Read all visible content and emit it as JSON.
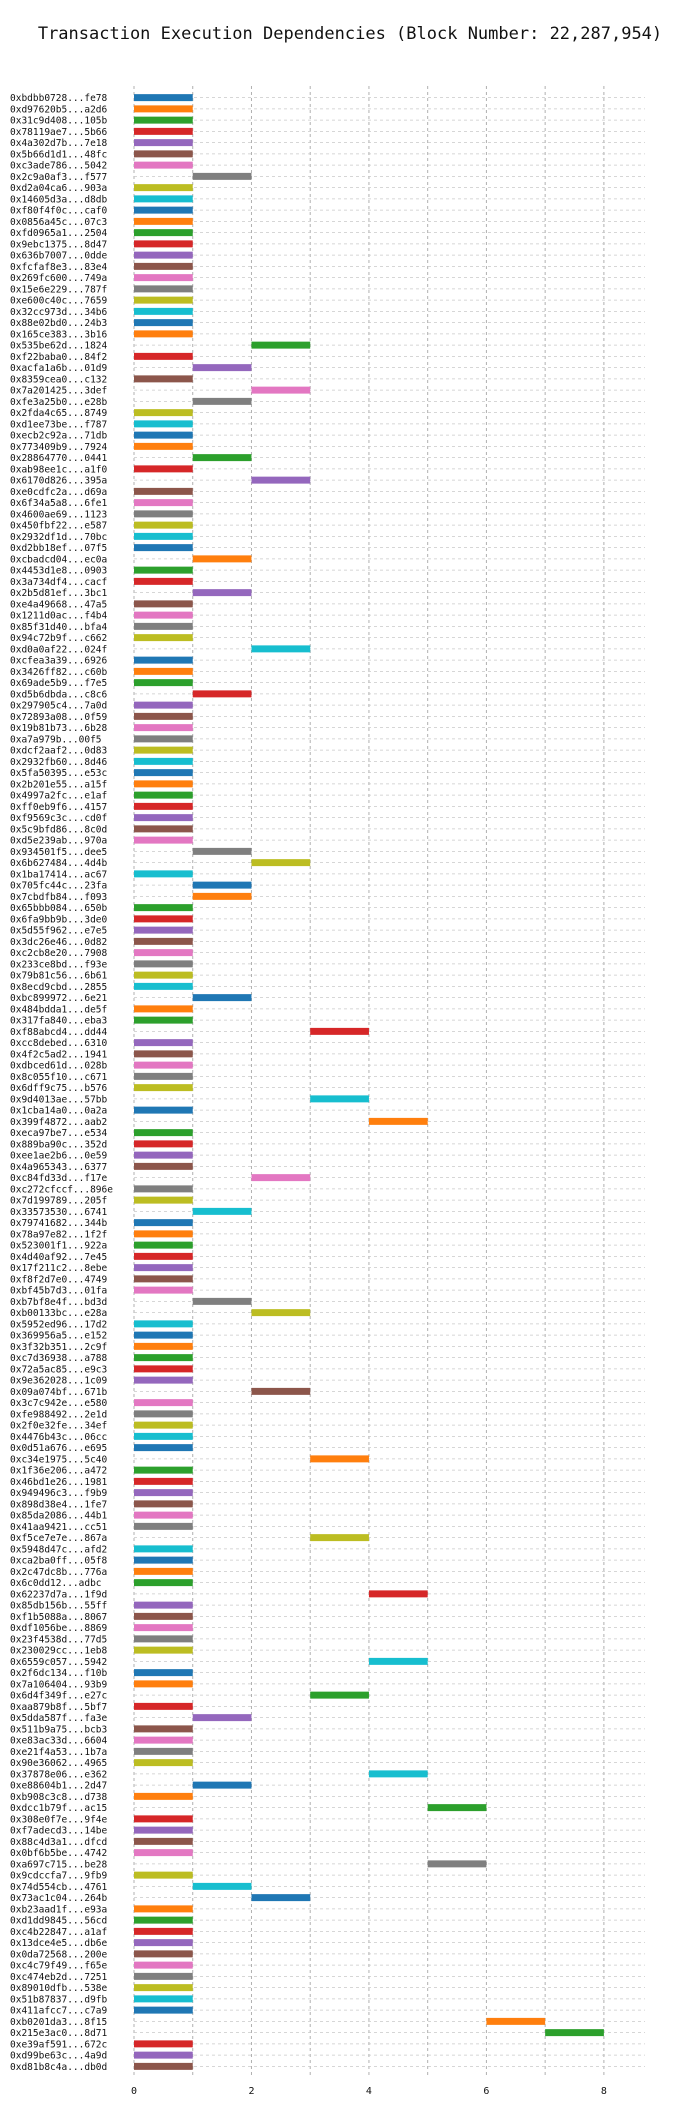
{
  "chart_data": {
    "type": "bar",
    "orientation": "horizontal",
    "title": "Transaction Execution Dependencies (Block Number: 22,287,954)",
    "xlabel": "",
    "ylabel": "",
    "xlim": [
      0,
      8.7
    ],
    "xticks": [
      0,
      2,
      4,
      6,
      8
    ],
    "grid": true,
    "legend": "none",
    "palette": [
      "#1f77b4",
      "#ff7f0e",
      "#2ca02c",
      "#d62728",
      "#9467bd",
      "#8c564b",
      "#e377c2",
      "#7f7f7f",
      "#bcbd22",
      "#17becf"
    ],
    "transactions": [
      {
        "label": "0xbdbb0728...fe78",
        "start": 0,
        "end": 1
      },
      {
        "label": "0xd97620b5...a2d6",
        "start": 0,
        "end": 1
      },
      {
        "label": "0x31c9d408...105b",
        "start": 0,
        "end": 1
      },
      {
        "label": "0x78119ae7...5b66",
        "start": 0,
        "end": 1
      },
      {
        "label": "0x4a302d7b...7e18",
        "start": 0,
        "end": 1
      },
      {
        "label": "0x5b66d1d1...48fc",
        "start": 0,
        "end": 1
      },
      {
        "label": "0xc3ade786...5042",
        "start": 0,
        "end": 1
      },
      {
        "label": "0x2c9a0af3...f577",
        "start": 1,
        "end": 2
      },
      {
        "label": "0xd2a04ca6...903a",
        "start": 0,
        "end": 1
      },
      {
        "label": "0x14605d3a...d8db",
        "start": 0,
        "end": 1
      },
      {
        "label": "0xf80f4f0c...caf0",
        "start": 0,
        "end": 1
      },
      {
        "label": "0x0856a45c...07c3",
        "start": 0,
        "end": 1
      },
      {
        "label": "0xfd0965a1...2504",
        "start": 0,
        "end": 1
      },
      {
        "label": "0x9ebc1375...8d47",
        "start": 0,
        "end": 1
      },
      {
        "label": "0x636b7007...0dde",
        "start": 0,
        "end": 1
      },
      {
        "label": "0xfcfaf8e3...83e4",
        "start": 0,
        "end": 1
      },
      {
        "label": "0x269fc600...749a",
        "start": 0,
        "end": 1
      },
      {
        "label": "0x15e6e229...787f",
        "start": 0,
        "end": 1
      },
      {
        "label": "0xe600c40c...7659",
        "start": 0,
        "end": 1
      },
      {
        "label": "0x32cc973d...34b6",
        "start": 0,
        "end": 1
      },
      {
        "label": "0x88e02bd0...24b3",
        "start": 0,
        "end": 1
      },
      {
        "label": "0x165ce383...3b16",
        "start": 0,
        "end": 1
      },
      {
        "label": "0x535be62d...1824",
        "start": 2,
        "end": 3
      },
      {
        "label": "0xf22baba0...84f2",
        "start": 0,
        "end": 1
      },
      {
        "label": "0xacfa1a6b...01d9",
        "start": 1,
        "end": 2
      },
      {
        "label": "0x8359cea0...c132",
        "start": 0,
        "end": 1
      },
      {
        "label": "0x7a201425...3def",
        "start": 2,
        "end": 3
      },
      {
        "label": "0xfe3a25b0...e28b",
        "start": 1,
        "end": 2
      },
      {
        "label": "0x2fda4c65...8749",
        "start": 0,
        "end": 1
      },
      {
        "label": "0xd1ee73be...f787",
        "start": 0,
        "end": 1
      },
      {
        "label": "0xecb2c92a...71db",
        "start": 0,
        "end": 1
      },
      {
        "label": "0x773409b9...7924",
        "start": 0,
        "end": 1
      },
      {
        "label": "0x28864770...0441",
        "start": 1,
        "end": 2
      },
      {
        "label": "0xab98ee1c...a1f0",
        "start": 0,
        "end": 1
      },
      {
        "label": "0x6170d826...395a",
        "start": 2,
        "end": 3
      },
      {
        "label": "0xe0cdfc2a...d69a",
        "start": 0,
        "end": 1
      },
      {
        "label": "0x6f34a5a8...6fe1",
        "start": 0,
        "end": 1
      },
      {
        "label": "0x4600ae69...1123",
        "start": 0,
        "end": 1
      },
      {
        "label": "0x450fbf22...e587",
        "start": 0,
        "end": 1
      },
      {
        "label": "0x2932df1d...70bc",
        "start": 0,
        "end": 1
      },
      {
        "label": "0xd2bb18ef...07f5",
        "start": 0,
        "end": 1
      },
      {
        "label": "0xcbadcd04...ec0a",
        "start": 1,
        "end": 2
      },
      {
        "label": "0x4453d1e8...0903",
        "start": 0,
        "end": 1
      },
      {
        "label": "0x3a734df4...cacf",
        "start": 0,
        "end": 1
      },
      {
        "label": "0x2b5d81ef...3bc1",
        "start": 1,
        "end": 2
      },
      {
        "label": "0xe4a49668...47a5",
        "start": 0,
        "end": 1
      },
      {
        "label": "0x1211d0ac...f4b4",
        "start": 0,
        "end": 1
      },
      {
        "label": "0x85f31d40...bfa4",
        "start": 0,
        "end": 1
      },
      {
        "label": "0x94c72b9f...c662",
        "start": 0,
        "end": 1
      },
      {
        "label": "0xd0a0af22...024f",
        "start": 2,
        "end": 3
      },
      {
        "label": "0xcfea3a39...6926",
        "start": 0,
        "end": 1
      },
      {
        "label": "0x3426ff82...c60b",
        "start": 0,
        "end": 1
      },
      {
        "label": "0x69ade5b9...f7e5",
        "start": 0,
        "end": 1
      },
      {
        "label": "0xd5b6dbda...c8c6",
        "start": 1,
        "end": 2
      },
      {
        "label": "0x297905c4...7a0d",
        "start": 0,
        "end": 1
      },
      {
        "label": "0x72893a08...0f59",
        "start": 0,
        "end": 1
      },
      {
        "label": "0x19b81b73...6b28",
        "start": 0,
        "end": 1
      },
      {
        "label": "0xa7a979b...00f5",
        "start": 0,
        "end": 1
      },
      {
        "label": "0xdcf2aaf2...0d83",
        "start": 0,
        "end": 1
      },
      {
        "label": "0x2932fb60...8d46",
        "start": 0,
        "end": 1
      },
      {
        "label": "0x5fa50395...e53c",
        "start": 0,
        "end": 1
      },
      {
        "label": "0x2b201e55...a15f",
        "start": 0,
        "end": 1
      },
      {
        "label": "0x4997a2fc...e1af",
        "start": 0,
        "end": 1
      },
      {
        "label": "0xff0eb9f6...4157",
        "start": 0,
        "end": 1
      },
      {
        "label": "0xf9569c3c...cd0f",
        "start": 0,
        "end": 1
      },
      {
        "label": "0x5c9bfd86...8c0d",
        "start": 0,
        "end": 1
      },
      {
        "label": "0xd5e239ab...970a",
        "start": 0,
        "end": 1
      },
      {
        "label": "0x934501f5...dee5",
        "start": 1,
        "end": 2
      },
      {
        "label": "0x6b627484...4d4b",
        "start": 2,
        "end": 3
      },
      {
        "label": "0x1ba17414...ac67",
        "start": 0,
        "end": 1
      },
      {
        "label": "0x705fc44c...23fa",
        "start": 1,
        "end": 2
      },
      {
        "label": "0x7cbdfb84...f093",
        "start": 1,
        "end": 2
      },
      {
        "label": "0x65bbb084...650b",
        "start": 0,
        "end": 1
      },
      {
        "label": "0x6fa9bb9b...3de0",
        "start": 0,
        "end": 1
      },
      {
        "label": "0x5d55f962...e7e5",
        "start": 0,
        "end": 1
      },
      {
        "label": "0x3dc26e46...0d82",
        "start": 0,
        "end": 1
      },
      {
        "label": "0xc2cb8e20...7908",
        "start": 0,
        "end": 1
      },
      {
        "label": "0x233ce8bd...f93e",
        "start": 0,
        "end": 1
      },
      {
        "label": "0x79b81c56...6b61",
        "start": 0,
        "end": 1
      },
      {
        "label": "0x8ecd9cbd...2855",
        "start": 0,
        "end": 1
      },
      {
        "label": "0xbc899972...6e21",
        "start": 1,
        "end": 2
      },
      {
        "label": "0x484bdda1...de5f",
        "start": 0,
        "end": 1
      },
      {
        "label": "0x317fa840...eba3",
        "start": 0,
        "end": 1
      },
      {
        "label": "0xf88abcd4...dd44",
        "start": 3,
        "end": 4
      },
      {
        "label": "0xcc8debed...6310",
        "start": 0,
        "end": 1
      },
      {
        "label": "0x4f2c5ad2...1941",
        "start": 0,
        "end": 1
      },
      {
        "label": "0xdbced61d...028b",
        "start": 0,
        "end": 1
      },
      {
        "label": "0x8c055f10...c671",
        "start": 0,
        "end": 1
      },
      {
        "label": "0x6dff9c75...b576",
        "start": 0,
        "end": 1
      },
      {
        "label": "0x9d4013ae...57bb",
        "start": 3,
        "end": 4
      },
      {
        "label": "0x1cba14a0...0a2a",
        "start": 0,
        "end": 1
      },
      {
        "label": "0x399f4872...aab2",
        "start": 4,
        "end": 5
      },
      {
        "label": "0xeca97be7...e534",
        "start": 0,
        "end": 1
      },
      {
        "label": "0x889ba90c...352d",
        "start": 0,
        "end": 1
      },
      {
        "label": "0xee1ae2b6...0e59",
        "start": 0,
        "end": 1
      },
      {
        "label": "0x4a965343...6377",
        "start": 0,
        "end": 1
      },
      {
        "label": "0xc84fd33d...f17e",
        "start": 2,
        "end": 3
      },
      {
        "label": "0xc272cfccf...896e",
        "start": 0,
        "end": 1
      },
      {
        "label": "0x7d199789...205f",
        "start": 0,
        "end": 1
      },
      {
        "label": "0x33573530...6741",
        "start": 1,
        "end": 2
      },
      {
        "label": "0x79741682...344b",
        "start": 0,
        "end": 1
      },
      {
        "label": "0x78a97e82...1f2f",
        "start": 0,
        "end": 1
      },
      {
        "label": "0x523001f1...922a",
        "start": 0,
        "end": 1
      },
      {
        "label": "0x4d40af92...7e45",
        "start": 0,
        "end": 1
      },
      {
        "label": "0x17f211c2...8ebe",
        "start": 0,
        "end": 1
      },
      {
        "label": "0xf8f2d7e0...4749",
        "start": 0,
        "end": 1
      },
      {
        "label": "0xbf45b7d3...01fa",
        "start": 0,
        "end": 1
      },
      {
        "label": "0xb7bf8e4f...bd3d",
        "start": 1,
        "end": 2
      },
      {
        "label": "0xb00133bc...e28a",
        "start": 2,
        "end": 3
      },
      {
        "label": "0x5952ed96...17d2",
        "start": 0,
        "end": 1
      },
      {
        "label": "0x369956a5...e152",
        "start": 0,
        "end": 1
      },
      {
        "label": "0x3f32b351...2c9f",
        "start": 0,
        "end": 1
      },
      {
        "label": "0xc7d36938...a788",
        "start": 0,
        "end": 1
      },
      {
        "label": "0x72a5ac85...e9c3",
        "start": 0,
        "end": 1
      },
      {
        "label": "0x9e362028...1c09",
        "start": 0,
        "end": 1
      },
      {
        "label": "0x09a074bf...671b",
        "start": 2,
        "end": 3
      },
      {
        "label": "0x3c7c942e...e580",
        "start": 0,
        "end": 1
      },
      {
        "label": "0xfe988492...2e1d",
        "start": 0,
        "end": 1
      },
      {
        "label": "0x2f0e32fe...34ef",
        "start": 0,
        "end": 1
      },
      {
        "label": "0x4476b43c...06cc",
        "start": 0,
        "end": 1
      },
      {
        "label": "0x0d51a676...e695",
        "start": 0,
        "end": 1
      },
      {
        "label": "0xc34e1975...5c40",
        "start": 3,
        "end": 4
      },
      {
        "label": "0x1f36e206...a472",
        "start": 0,
        "end": 1
      },
      {
        "label": "0x46bd1e26...1981",
        "start": 0,
        "end": 1
      },
      {
        "label": "0x949496c3...f9b9",
        "start": 0,
        "end": 1
      },
      {
        "label": "0x898d38e4...1fe7",
        "start": 0,
        "end": 1
      },
      {
        "label": "0x85da2086...44b1",
        "start": 0,
        "end": 1
      },
      {
        "label": "0x41aa9421...cc51",
        "start": 0,
        "end": 1
      },
      {
        "label": "0xf5ce7e7e...867a",
        "start": 3,
        "end": 4
      },
      {
        "label": "0x5948d47c...afd2",
        "start": 0,
        "end": 1
      },
      {
        "label": "0xca2ba0ff...05f8",
        "start": 0,
        "end": 1
      },
      {
        "label": "0x2c47dc8b...776a",
        "start": 0,
        "end": 1
      },
      {
        "label": "0x6c0dd12...adbc",
        "start": 0,
        "end": 1
      },
      {
        "label": "0x62237d7a...1f9d",
        "start": 4,
        "end": 5
      },
      {
        "label": "0x85db156b...55ff",
        "start": 0,
        "end": 1
      },
      {
        "label": "0xf1b5088a...8067",
        "start": 0,
        "end": 1
      },
      {
        "label": "0xdf1056be...8869",
        "start": 0,
        "end": 1
      },
      {
        "label": "0x23f4538d...77d5",
        "start": 0,
        "end": 1
      },
      {
        "label": "0x230029cc...1eb8",
        "start": 0,
        "end": 1
      },
      {
        "label": "0x6559c057...5942",
        "start": 4,
        "end": 5
      },
      {
        "label": "0x2f6dc134...f10b",
        "start": 0,
        "end": 1
      },
      {
        "label": "0x7a106404...93b9",
        "start": 0,
        "end": 1
      },
      {
        "label": "0x6d4f349f...e27c",
        "start": 3,
        "end": 4
      },
      {
        "label": "0xaa879b8f...5bf7",
        "start": 0,
        "end": 1
      },
      {
        "label": "0x5dda587f...fa3e",
        "start": 1,
        "end": 2
      },
      {
        "label": "0x511b9a75...bcb3",
        "start": 0,
        "end": 1
      },
      {
        "label": "0xe83ac33d...6604",
        "start": 0,
        "end": 1
      },
      {
        "label": "0xe21f4a53...1b7a",
        "start": 0,
        "end": 1
      },
      {
        "label": "0x90e36062...4965",
        "start": 0,
        "end": 1
      },
      {
        "label": "0x37878e06...e362",
        "start": 4,
        "end": 5
      },
      {
        "label": "0xe88604b1...2d47",
        "start": 1,
        "end": 2
      },
      {
        "label": "0xb908c3c8...d738",
        "start": 0,
        "end": 1
      },
      {
        "label": "0xdcc1b79f...ac15",
        "start": 5,
        "end": 6
      },
      {
        "label": "0x308e0f7e...9f4e",
        "start": 0,
        "end": 1
      },
      {
        "label": "0xf7adecd3...14be",
        "start": 0,
        "end": 1
      },
      {
        "label": "0x88c4d3a1...dfcd",
        "start": 0,
        "end": 1
      },
      {
        "label": "0x0bf6b5be...4742",
        "start": 0,
        "end": 1
      },
      {
        "label": "0xa697c715...be28",
        "start": 5,
        "end": 6
      },
      {
        "label": "0x9cdccfa7...9fb9",
        "start": 0,
        "end": 1
      },
      {
        "label": "0x74d554cb...4761",
        "start": 1,
        "end": 2
      },
      {
        "label": "0x73ac1c04...264b",
        "start": 2,
        "end": 3
      },
      {
        "label": "0xb23aad1f...e93a",
        "start": 0,
        "end": 1
      },
      {
        "label": "0xd1dd9845...56cd",
        "start": 0,
        "end": 1
      },
      {
        "label": "0xc4b22847...a1af",
        "start": 0,
        "end": 1
      },
      {
        "label": "0x13dce4e5...db6e",
        "start": 0,
        "end": 1
      },
      {
        "label": "0x0da72568...200e",
        "start": 0,
        "end": 1
      },
      {
        "label": "0xc4c79f49...f65e",
        "start": 0,
        "end": 1
      },
      {
        "label": "0xc474eb2d...7251",
        "start": 0,
        "end": 1
      },
      {
        "label": "0x89010dfb...538e",
        "start": 0,
        "end": 1
      },
      {
        "label": "0x51b87837...d9fb",
        "start": 0,
        "end": 1
      },
      {
        "label": "0x411afcc7...c7a9",
        "start": 0,
        "end": 1
      },
      {
        "label": "0xb0201da3...8f15",
        "start": 6,
        "end": 7
      },
      {
        "label": "0x215e3ac0...8d71",
        "start": 7,
        "end": 8
      },
      {
        "label": "0xe39af591...672c",
        "start": 0,
        "end": 1
      },
      {
        "label": "0xd99be63c...4a9d",
        "start": 0,
        "end": 1
      },
      {
        "label": "0xd81b8c4a...db0d",
        "start": 0,
        "end": 1
      }
    ]
  }
}
